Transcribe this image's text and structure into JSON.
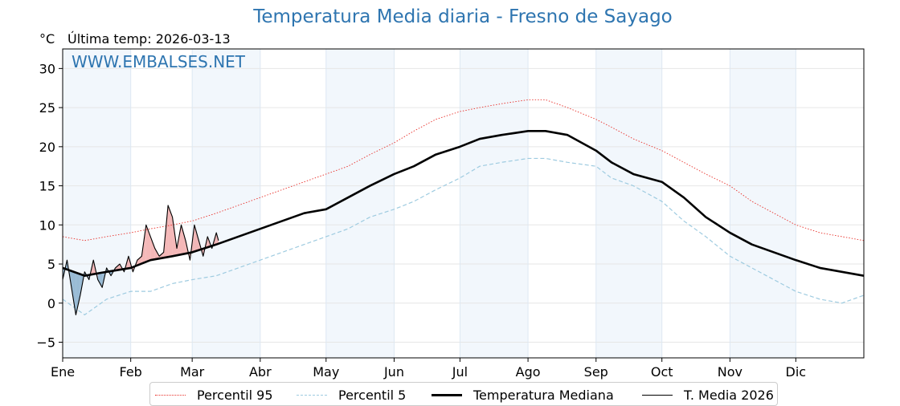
{
  "title": "Temperatura Media diaria - Fresno de Sayago",
  "unit_label": "°C",
  "last_temp_label": "Última temp: 2026-03-13",
  "watermark": "WWW.EMBALSES.NET",
  "chart_data": {
    "type": "line",
    "title": "Temperatura Media diaria - Fresno de Sayago",
    "ylim": [
      -7,
      32.5
    ],
    "yticks": [
      -5,
      0,
      5,
      10,
      15,
      20,
      25,
      30
    ],
    "ytick_labels": [
      "−5",
      "0",
      "5",
      "10",
      "15",
      "20",
      "25",
      "30"
    ],
    "xlim": [
      0,
      365
    ],
    "month_starts": [
      0,
      31,
      59,
      90,
      120,
      151,
      181,
      212,
      243,
      273,
      304,
      334
    ],
    "month_labels": [
      "Ene",
      "Feb",
      "Mar",
      "Abr",
      "May",
      "Jun",
      "Jul",
      "Ago",
      "Sep",
      "Oct",
      "Nov",
      "Dic"
    ],
    "grid": true,
    "shaded_months": [
      0,
      2,
      4,
      6,
      8,
      10
    ],
    "legend_position": "bottom",
    "series": [
      {
        "name": "Percentil 95",
        "color": "#e8302a",
        "style": "dotted",
        "x": [
          0,
          10,
          20,
          31,
          40,
          50,
          59,
          70,
          80,
          90,
          100,
          110,
          120,
          130,
          140,
          151,
          160,
          170,
          181,
          190,
          200,
          212,
          220,
          230,
          243,
          250,
          260,
          273,
          283,
          293,
          304,
          314,
          324,
          334,
          345,
          355,
          365
        ],
        "values": [
          8.5,
          8.0,
          8.5,
          9.0,
          9.5,
          10.0,
          10.5,
          11.5,
          12.5,
          13.5,
          14.5,
          15.5,
          16.5,
          17.5,
          19.0,
          20.5,
          22.0,
          23.5,
          24.5,
          25.0,
          25.5,
          26.0,
          26.0,
          25.0,
          23.5,
          22.5,
          21.0,
          19.5,
          18.0,
          16.5,
          15.0,
          13.0,
          11.5,
          10.0,
          9.0,
          8.5,
          8.0
        ]
      },
      {
        "name": "Percentil 5",
        "color": "#9ecbe0",
        "style": "dashed",
        "x": [
          0,
          10,
          20,
          31,
          40,
          50,
          59,
          70,
          80,
          90,
          100,
          110,
          120,
          130,
          140,
          151,
          160,
          170,
          181,
          190,
          200,
          212,
          220,
          230,
          243,
          250,
          260,
          273,
          283,
          293,
          304,
          314,
          324,
          334,
          345,
          355,
          365
        ],
        "values": [
          0.5,
          -1.5,
          0.5,
          1.5,
          1.5,
          2.5,
          3.0,
          3.5,
          4.5,
          5.5,
          6.5,
          7.5,
          8.5,
          9.5,
          11.0,
          12.0,
          13.0,
          14.5,
          16.0,
          17.5,
          18.0,
          18.5,
          18.5,
          18.0,
          17.5,
          16.0,
          15.0,
          13.0,
          10.5,
          8.5,
          6.0,
          4.5,
          3.0,
          1.5,
          0.5,
          0.0,
          1.0
        ]
      },
      {
        "name": "Temperatura Mediana",
        "color": "#000000",
        "style": "solid-thick",
        "x": [
          0,
          10,
          20,
          31,
          40,
          50,
          59,
          70,
          80,
          90,
          100,
          110,
          120,
          130,
          140,
          151,
          160,
          170,
          181,
          190,
          200,
          212,
          220,
          230,
          243,
          250,
          260,
          273,
          283,
          293,
          304,
          314,
          324,
          334,
          345,
          355,
          365
        ],
        "values": [
          4.5,
          3.5,
          4.0,
          4.5,
          5.5,
          6.0,
          6.5,
          7.5,
          8.5,
          9.5,
          10.5,
          11.5,
          12.0,
          13.5,
          15.0,
          16.5,
          17.5,
          19.0,
          20.0,
          21.0,
          21.5,
          22.0,
          22.0,
          21.5,
          19.5,
          18.0,
          16.5,
          15.5,
          13.5,
          11.0,
          9.0,
          7.5,
          6.5,
          5.5,
          4.5,
          4.0,
          3.5
        ]
      },
      {
        "name": "T. Media 2026",
        "color": "#000000",
        "style": "solid-thin",
        "x": [
          0,
          2,
          4,
          6,
          8,
          10,
          12,
          14,
          16,
          18,
          20,
          22,
          24,
          26,
          28,
          30,
          32,
          34,
          36,
          38,
          40,
          42,
          44,
          46,
          48,
          50,
          52,
          54,
          56,
          58,
          60,
          62,
          64,
          66,
          68,
          70,
          71
        ],
        "values": [
          3.0,
          5.5,
          2.0,
          -1.5,
          1.0,
          4.0,
          3.0,
          5.5,
          3.0,
          2.0,
          4.5,
          3.5,
          4.5,
          5.0,
          4.0,
          6.0,
          4.0,
          5.5,
          6.0,
          10.0,
          8.5,
          7.0,
          6.0,
          6.5,
          12.5,
          11.0,
          7.0,
          10.0,
          8.0,
          5.5,
          10.0,
          8.0,
          6.0,
          8.5,
          7.0,
          9.0,
          8.0
        ]
      }
    ]
  },
  "legend": {
    "items": [
      {
        "label": "Percentil 95"
      },
      {
        "label": "Percentil 5"
      },
      {
        "label": "Temperatura Mediana"
      },
      {
        "label": "T. Media 2026"
      }
    ]
  }
}
